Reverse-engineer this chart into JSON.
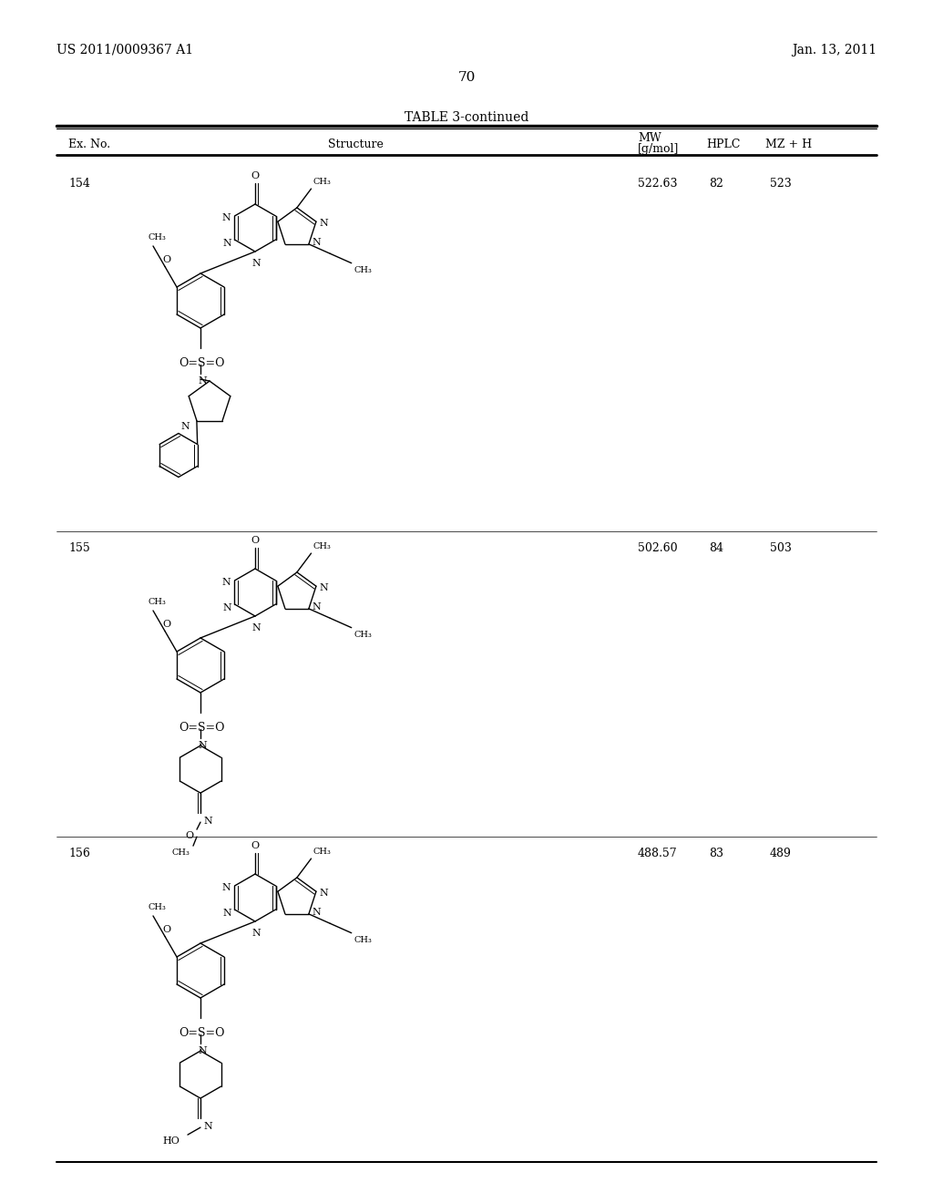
{
  "page_header_left": "US 2011/0009367 A1",
  "page_header_right": "Jan. 13, 2011",
  "page_number": "70",
  "table_title": "TABLE 3-continued",
  "col_ex": "Ex. No.",
  "col_struct": "Structure",
  "col_mw_top": "MW",
  "col_mw_bot": "[g/mol]",
  "col_hplc": "HPLC",
  "col_mz": "MZ + H",
  "rows": [
    {
      "ex_no": "154",
      "mw": "522.63",
      "hplc": "82",
      "mz": "523"
    },
    {
      "ex_no": "155",
      "mw": "502.60",
      "hplc": "84",
      "mz": "503"
    },
    {
      "ex_no": "156",
      "mw": "488.57",
      "hplc": "83",
      "mz": "489"
    }
  ],
  "bg": "#ffffff",
  "fg": "#000000"
}
